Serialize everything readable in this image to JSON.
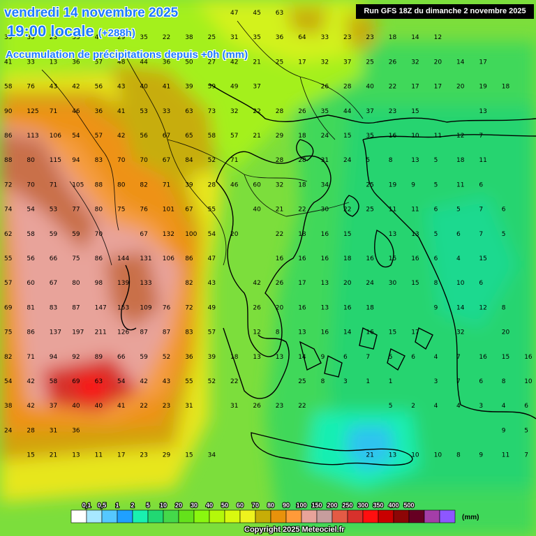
{
  "header": {
    "date": "vendredi 14 novembre 2025",
    "time": "19:00 locale",
    "offset": "(+288h)",
    "product": "Accumulation de précipitations depuis +0h (mm)",
    "run": "Run GFS 18Z du dimanche 2 novembre 2025"
  },
  "legend": {
    "unit": "(mm)",
    "labels": [
      "0,1",
      "0,5",
      "1",
      "2",
      "5",
      "10",
      "20",
      "30",
      "40",
      "50",
      "60",
      "70",
      "80",
      "90",
      "100",
      "150",
      "200",
      "250",
      "300",
      "350",
      "400",
      "500"
    ],
    "colors": [
      "#ffffff",
      "#a7e8ff",
      "#55c8ff",
      "#1fa0ff",
      "#19f0b0",
      "#21d873",
      "#44d94a",
      "#64e21b",
      "#8af70f",
      "#b4f80a",
      "#d8f90f",
      "#eef31e",
      "#c7ad07",
      "#e8920b",
      "#ff9a39",
      "#e8a39a",
      "#c79d9d",
      "#e45b45",
      "#d7312c",
      "#ff0f0f",
      "#c90000",
      "#8d0606",
      "#660022",
      "#a43ea8",
      "#8d57ff"
    ]
  },
  "footer": {
    "copyright": "Copyright 2025 Meteociel.fr"
  },
  "grid_values": [
    [
      "",
      "",
      "",
      "",
      "",
      "",
      "33",
      "27",
      "33",
      "29",
      "47",
      "45",
      "63",
      "",
      "",
      "",
      "",
      "",
      "",
      ""
    ],
    [
      "35",
      "35",
      "23",
      "33",
      "41",
      "29",
      "35",
      "22",
      "38",
      "25",
      "31",
      "35",
      "36",
      "64",
      "33",
      "23",
      "23",
      "18",
      "14",
      "12"
    ],
    [
      "41",
      "33",
      "13",
      "36",
      "57",
      "48",
      "44",
      "36",
      "50",
      "27",
      "42",
      "21",
      "25",
      "17",
      "32",
      "37",
      "25",
      "26",
      "32",
      "20",
      "14",
      "17"
    ],
    [
      "58",
      "76",
      "43",
      "42",
      "56",
      "43",
      "40",
      "41",
      "39",
      "59",
      "49",
      "37",
      "",
      "",
      "26",
      "28",
      "40",
      "22",
      "17",
      "17",
      "20",
      "19",
      "18"
    ],
    [
      "90",
      "125",
      "71",
      "46",
      "36",
      "41",
      "53",
      "33",
      "63",
      "73",
      "32",
      "22",
      "28",
      "26",
      "35",
      "44",
      "37",
      "23",
      "15",
      "",
      "",
      "13"
    ],
    [
      "86",
      "113",
      "106",
      "54",
      "57",
      "42",
      "56",
      "67",
      "65",
      "58",
      "57",
      "21",
      "29",
      "18",
      "24",
      "15",
      "35",
      "16",
      "10",
      "11",
      "12",
      "7"
    ],
    [
      "88",
      "80",
      "115",
      "94",
      "83",
      "70",
      "70",
      "67",
      "84",
      "52",
      "71",
      "",
      "28",
      "28",
      "31",
      "24",
      "5",
      "8",
      "13",
      "5",
      "18",
      "11"
    ],
    [
      "72",
      "70",
      "71",
      "105",
      "88",
      "80",
      "82",
      "71",
      "39",
      "28",
      "46",
      "60",
      "32",
      "18",
      "34",
      "",
      "25",
      "19",
      "9",
      "5",
      "11",
      "6"
    ],
    [
      "74",
      "54",
      "53",
      "77",
      "80",
      "75",
      "76",
      "101",
      "67",
      "55",
      "",
      "40",
      "21",
      "22",
      "30",
      "22",
      "25",
      "11",
      "11",
      "6",
      "5",
      "7",
      "6"
    ],
    [
      "62",
      "58",
      "59",
      "59",
      "70",
      "",
      "67",
      "132",
      "100",
      "54",
      "20",
      "",
      "22",
      "18",
      "16",
      "15",
      "",
      "13",
      "13",
      "5",
      "6",
      "7",
      "5"
    ],
    [
      "55",
      "56",
      "66",
      "75",
      "86",
      "144",
      "131",
      "106",
      "86",
      "47",
      "",
      "",
      "16",
      "16",
      "16",
      "18",
      "16",
      "15",
      "16",
      "6",
      "4",
      "15"
    ],
    [
      "57",
      "60",
      "67",
      "80",
      "98",
      "139",
      "133",
      "",
      "82",
      "43",
      "",
      "42",
      "26",
      "17",
      "13",
      "20",
      "24",
      "30",
      "15",
      "8",
      "10",
      "6"
    ],
    [
      "69",
      "81",
      "83",
      "87",
      "147",
      "153",
      "109",
      "76",
      "72",
      "49",
      "",
      "26",
      "20",
      "16",
      "13",
      "16",
      "18",
      "",
      "",
      "9",
      "14",
      "12",
      "8"
    ],
    [
      "75",
      "86",
      "137",
      "197",
      "211",
      "126",
      "87",
      "87",
      "83",
      "57",
      "",
      "12",
      "8",
      "13",
      "16",
      "14",
      "16",
      "15",
      "17",
      "",
      "32",
      "",
      "20"
    ],
    [
      "82",
      "71",
      "94",
      "92",
      "89",
      "66",
      "59",
      "52",
      "36",
      "39",
      "18",
      "13",
      "13",
      "14",
      "9",
      "6",
      "7",
      "5",
      "6",
      "4",
      "7",
      "16",
      "15",
      "16"
    ],
    [
      "54",
      "42",
      "58",
      "69",
      "63",
      "54",
      "42",
      "43",
      "55",
      "52",
      "22",
      "",
      "",
      "25",
      "8",
      "3",
      "1",
      "1",
      "",
      "3",
      "7",
      "6",
      "8",
      "10"
    ],
    [
      "38",
      "42",
      "37",
      "40",
      "40",
      "41",
      "22",
      "23",
      "31",
      "",
      "31",
      "26",
      "23",
      "22",
      "",
      "",
      "",
      "5",
      "2",
      "4",
      "4",
      "3",
      "4",
      "6"
    ],
    [
      "24",
      "28",
      "31",
      "36",
      "",
      "",
      "",
      "",
      "",
      "",
      "",
      "",
      "",
      "",
      "",
      "",
      "",
      "",
      "",
      "",
      "",
      "",
      "9",
      "5"
    ],
    [
      "",
      "15",
      "21",
      "13",
      "11",
      "17",
      "23",
      "29",
      "15",
      "34",
      "",
      "",
      "",
      "",
      "",
      "",
      "21",
      "13",
      "10",
      "10",
      "8",
      "9",
      "11",
      "7"
    ]
  ]
}
